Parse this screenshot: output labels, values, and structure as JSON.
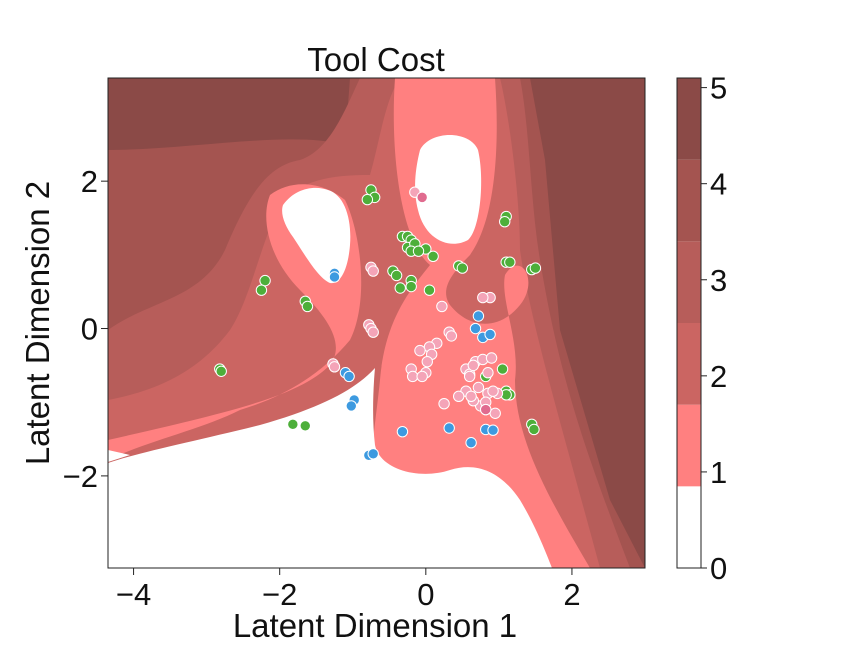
{
  "chart_data": {
    "type": "scatter",
    "title": "Tool Cost",
    "xlabel": "Latent Dimension 1",
    "ylabel": "Latent Dimension 2",
    "xlim": [
      -4.35,
      3.0
    ],
    "ylim": [
      -3.25,
      3.4
    ],
    "xticks": [
      -4,
      -2,
      0,
      2
    ],
    "yticks": [
      -2,
      0,
      2
    ],
    "x_tick_labels": [
      "−4",
      "−2",
      "0",
      "2"
    ],
    "y_tick_labels": [
      "−2",
      "0",
      "2"
    ],
    "grid": false,
    "legend": "none",
    "colorbar": {
      "levels": [
        0,
        0.85,
        1.7,
        2.55,
        3.4,
        4.25,
        5.1
      ],
      "ticks": [
        0,
        1,
        2,
        3,
        4,
        5
      ],
      "tick_labels": [
        "0",
        "1",
        "2",
        "3",
        "4",
        "5"
      ],
      "colors": [
        "#ffffff",
        "#ff8080",
        "#cb6562",
        "#b75d5a",
        "#a45450",
        "#8b4a47"
      ]
    },
    "series": [
      {
        "color": "#4daf3a",
        "x": [
          -0.75,
          -0.7,
          -0.8,
          -0.32,
          -0.25,
          -0.2,
          -0.25,
          -0.15,
          -0.2,
          0.0,
          -0.1,
          0.1,
          -0.45,
          -0.4,
          -0.2,
          -0.35,
          -0.2,
          0.05,
          0.45,
          0.5,
          1.1,
          1.08,
          1.1,
          1.15,
          1.45,
          1.5,
          -2.2,
          -2.25,
          -1.65,
          -1.62,
          -2.82,
          -2.8,
          -1.82,
          -1.65,
          1.45,
          1.48,
          1.1,
          1.15,
          0.82,
          1.05,
          1.1
        ],
        "y": [
          1.88,
          1.78,
          1.75,
          1.25,
          1.25,
          1.2,
          1.1,
          1.15,
          1.05,
          1.08,
          1.05,
          0.98,
          0.78,
          0.72,
          0.65,
          0.55,
          0.57,
          0.52,
          0.85,
          0.82,
          1.52,
          1.45,
          0.9,
          0.9,
          0.8,
          0.82,
          0.65,
          0.52,
          0.37,
          0.3,
          -0.55,
          -0.58,
          -1.3,
          -1.32,
          -1.3,
          -1.37,
          -0.85,
          -0.9,
          -0.65,
          -0.55,
          -0.9
        ]
      },
      {
        "color": "#3d9ae0",
        "x": [
          -1.25,
          -1.25,
          -1.1,
          -1.05,
          -0.98,
          -1.02,
          -0.32,
          -0.78,
          -0.72,
          0.32,
          0.62,
          0.72,
          0.68,
          0.78,
          0.88,
          0.82,
          0.92
        ],
        "y": [
          0.75,
          0.7,
          -0.6,
          -0.65,
          -0.97,
          -1.05,
          -1.4,
          -1.72,
          -1.7,
          -1.35,
          -1.55,
          0.17,
          0.0,
          -0.12,
          -0.08,
          -1.37,
          -1.38
        ],
        "stroke": "#ffffff"
      },
      {
        "color": "#f4a4b8",
        "x": [
          -0.15,
          -0.75,
          -0.72,
          -0.78,
          -0.75,
          -0.72,
          -1.27,
          -1.25,
          0.22,
          0.32,
          0.35,
          0.15,
          0.05,
          -0.08,
          0.08,
          0.02,
          -0.2,
          -0.18,
          0.0,
          -0.05,
          0.55,
          0.6,
          0.68,
          0.6,
          0.65,
          0.78,
          0.85,
          0.72,
          0.85,
          0.55,
          0.45,
          0.75,
          0.82,
          0.98,
          0.92,
          0.65,
          0.82,
          0.95,
          0.88,
          0.78,
          0.9,
          0.25,
          0.62
        ],
        "y": [
          1.85,
          0.83,
          0.78,
          0.05,
          0.0,
          -0.05,
          -0.48,
          -0.52,
          0.3,
          -0.05,
          -0.1,
          -0.2,
          -0.25,
          -0.3,
          -0.35,
          -0.45,
          -0.55,
          -0.65,
          -0.6,
          -0.65,
          -0.55,
          -0.62,
          -0.45,
          -0.65,
          -0.5,
          -0.42,
          -0.6,
          -0.8,
          -0.88,
          -0.85,
          -0.92,
          -1.05,
          -1.0,
          -0.88,
          -0.85,
          -0.98,
          -1.1,
          -1.15,
          0.42,
          0.42,
          -0.4,
          -1.02,
          -0.92
        ]
      },
      {
        "color": "#e06b8f",
        "x": [
          -0.05,
          0.82
        ],
        "y": [
          1.78,
          -1.1
        ]
      }
    ]
  }
}
